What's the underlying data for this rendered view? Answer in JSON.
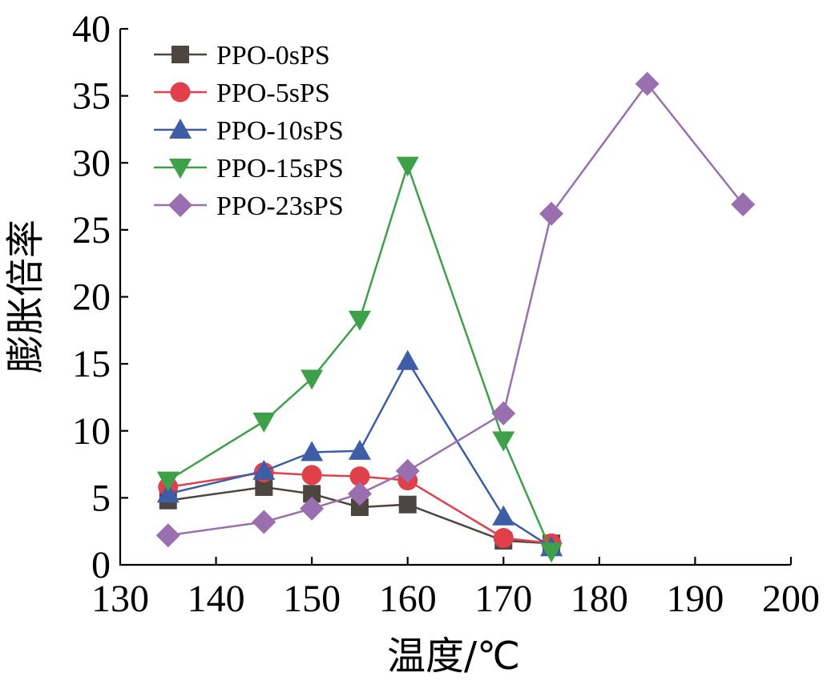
{
  "chart_data": {
    "type": "line",
    "title": "",
    "xlabel": "温度/℃",
    "ylabel": "膨胀倍率",
    "xlim": [
      130,
      200
    ],
    "ylim": [
      0,
      40
    ],
    "xticks": [
      130,
      140,
      150,
      160,
      170,
      180,
      190,
      200
    ],
    "yticks": [
      0,
      5,
      10,
      15,
      20,
      25,
      30,
      35,
      40
    ],
    "grid": false,
    "legend_position": "top-left",
    "series": [
      {
        "name": "PPO-0sPS",
        "color": "#4d4540",
        "marker": "square",
        "points": [
          [
            135,
            4.8
          ],
          [
            145,
            5.8
          ],
          [
            150,
            5.3
          ],
          [
            155,
            4.3
          ],
          [
            160,
            4.5
          ],
          [
            170,
            1.8
          ],
          [
            175,
            1.6
          ]
        ]
      },
      {
        "name": "PPO-5sPS",
        "color": "#e0404a",
        "marker": "circle",
        "points": [
          [
            135,
            5.8
          ],
          [
            145,
            6.9
          ],
          [
            150,
            6.7
          ],
          [
            155,
            6.6
          ],
          [
            160,
            6.3
          ],
          [
            170,
            2.0
          ],
          [
            175,
            1.6
          ]
        ]
      },
      {
        "name": "PPO-10sPS",
        "color": "#3d5da6",
        "marker": "triangle-up",
        "points": [
          [
            135,
            5.3
          ],
          [
            145,
            7.0
          ],
          [
            150,
            8.4
          ],
          [
            155,
            8.5
          ],
          [
            160,
            15.2
          ],
          [
            170,
            3.6
          ],
          [
            175,
            1.3
          ]
        ]
      },
      {
        "name": "PPO-15sPS",
        "color": "#3fa04a",
        "marker": "triangle-down",
        "points": [
          [
            135,
            6.3
          ],
          [
            145,
            10.7
          ],
          [
            150,
            13.9
          ],
          [
            155,
            18.3
          ],
          [
            160,
            29.8
          ],
          [
            170,
            9.3
          ],
          [
            175,
            1.0
          ]
        ]
      },
      {
        "name": "PPO-23sPS",
        "color": "#9a6fb0",
        "marker": "diamond",
        "points": [
          [
            135,
            2.2
          ],
          [
            145,
            3.2
          ],
          [
            150,
            4.2
          ],
          [
            155,
            5.3
          ],
          [
            160,
            7.0
          ],
          [
            170,
            11.3
          ],
          [
            175,
            26.2
          ],
          [
            185,
            35.9
          ],
          [
            195,
            26.9
          ]
        ]
      }
    ]
  }
}
